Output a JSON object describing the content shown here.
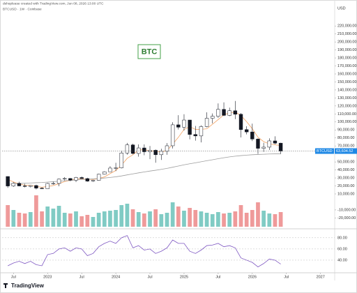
{
  "header": {
    "attribution": "dshoplease created with TradingView.com, Jun 08, 2026 13:00 UTC",
    "symbol": "BTCUSD · 1W · Coinbase"
  },
  "footer": {
    "logo": "TradingView"
  },
  "chart_data": {
    "type": "candlestick",
    "annotation": "BTC",
    "currency": "USD",
    "symbol_tag": "BTCUSD",
    "x": [
      "2022-06",
      "2022-07",
      "2022-08",
      "2022-09",
      "2022-10",
      "2022-11",
      "2022-12",
      "2023-01",
      "2023-02",
      "2023-03",
      "2023-04",
      "2023-05",
      "2023-06",
      "2023-07",
      "2023-08",
      "2023-09",
      "2023-10",
      "2023-11",
      "2023-12",
      "2024-01",
      "2024-02",
      "2024-03",
      "2024-04",
      "2024-05",
      "2024-06",
      "2024-07",
      "2024-08",
      "2024-09",
      "2024-10",
      "2024-11",
      "2024-12",
      "2025-01",
      "2025-02",
      "2025-03",
      "2025-04",
      "2025-05",
      "2025-06",
      "2025-07",
      "2025-08",
      "2025-09",
      "2025-10",
      "2025-11",
      "2025-12",
      "2026-01",
      "2026-02",
      "2026-03",
      "2026-04",
      "2026-05",
      "2026-06"
    ],
    "open": [
      31800,
      19900,
      23300,
      20000,
      19400,
      20500,
      17200,
      16500,
      23100,
      23100,
      28500,
      29300,
      27200,
      30500,
      29200,
      26000,
      27000,
      34600,
      37700,
      42300,
      42600,
      61200,
      71300,
      60600,
      67500,
      62700,
      64600,
      59000,
      63300,
      70200,
      96400,
      93400,
      102400,
      84300,
      82500,
      94200,
      104600,
      107100,
      115700,
      108200,
      114000,
      109600,
      90400,
      87500,
      78600,
      67000,
      68500,
      76300,
      73500
    ],
    "high": [
      31900,
      24600,
      25200,
      22700,
      21000,
      21500,
      18400,
      23900,
      25300,
      29200,
      31000,
      29800,
      31400,
      31800,
      30200,
      27500,
      35200,
      38400,
      44700,
      48900,
      64000,
      73800,
      72800,
      71900,
      71900,
      70000,
      65600,
      66500,
      73600,
      99600,
      108400,
      109600,
      102500,
      95000,
      95800,
      112000,
      110600,
      123200,
      124500,
      117900,
      126200,
      111200,
      94600,
      97900,
      79500,
      74000,
      79500,
      82000,
      74000
    ],
    "low": [
      17600,
      18800,
      19600,
      18200,
      18200,
      15500,
      16300,
      16500,
      21400,
      19600,
      26900,
      25800,
      24800,
      28900,
      25200,
      24900,
      26600,
      34100,
      37600,
      38500,
      41900,
      59000,
      59600,
      56600,
      58400,
      53500,
      49000,
      52500,
      58900,
      66800,
      90500,
      89200,
      78200,
      76600,
      74400,
      93300,
      98200,
      105100,
      107300,
      107200,
      103500,
      80600,
      84400,
      76000,
      60000,
      62500,
      65000,
      72000,
      60000
    ],
    "close": [
      19900,
      23300,
      20000,
      19400,
      20500,
      17200,
      16500,
      23100,
      23100,
      28500,
      29300,
      27200,
      30500,
      29200,
      26000,
      27000,
      34600,
      37700,
      42300,
      42600,
      61200,
      71300,
      60600,
      67500,
      62700,
      64600,
      59000,
      63300,
      70200,
      96400,
      93400,
      102400,
      84300,
      82500,
      94200,
      104600,
      107100,
      115700,
      108200,
      114000,
      109600,
      90400,
      87500,
      78600,
      67000,
      68500,
      76300,
      73500,
      63604.52
    ],
    "up_color": "#ffffff",
    "down_color": "#131722",
    "wick_color": "#131722",
    "moving_averages": [
      {
        "color": "#f4a261",
        "values": [
          28000,
          25000,
          22500,
          21000,
          20800,
          19500,
          18400,
          19300,
          20500,
          22800,
          25500,
          27000,
          28900,
          29100,
          28200,
          28100,
          29200,
          31300,
          35400,
          39300,
          46000,
          54500,
          59000,
          64700,
          65500,
          63900,
          63500,
          62400,
          64300,
          72200,
          80800,
          90600,
          94100,
          90700,
          90800,
          91400,
          97100,
          102900,
          108900,
          111400,
          112400,
          108000,
          100400,
          91500,
          80900,
          75400,
          72600,
          71400,
          70500
        ]
      },
      {
        "color": "#9e9e9e",
        "values": [
          22000,
          22500,
          23000,
          23400,
          23700,
          24000,
          24300,
          24800,
          25300,
          25900,
          26500,
          27000,
          27500,
          28000,
          28400,
          28800,
          29300,
          29900,
          30600,
          31400,
          32500,
          33800,
          35100,
          36300,
          37500,
          38600,
          39600,
          40700,
          41900,
          43400,
          44900,
          46400,
          47700,
          48900,
          50200,
          51500,
          52700,
          54000,
          55200,
          56300,
          57200,
          57900,
          58500,
          59000,
          59300,
          59600,
          59900,
          60100,
          60200
        ]
      }
    ],
    "last_price": {
      "value": 63604.52,
      "label": "63,604.52"
    },
    "ylim": [
      -31000,
      235000
    ],
    "yticks": [
      {
        "value": 220000,
        "label": "220,000.00"
      },
      {
        "value": 210000,
        "label": "210,000.00"
      },
      {
        "value": 200000,
        "label": "200,000.00"
      },
      {
        "value": 190000,
        "label": "190,000.00"
      },
      {
        "value": 180000,
        "label": "180,000.00"
      },
      {
        "value": 170000,
        "label": "170,000.00"
      },
      {
        "value": 160000,
        "label": "160,000.00"
      },
      {
        "value": 150000,
        "label": "150,000.00"
      },
      {
        "value": 140000,
        "label": "140,000.00"
      },
      {
        "value": 130000,
        "label": "130,000.00"
      },
      {
        "value": 120000,
        "label": "120,000.00"
      },
      {
        "value": 110000,
        "label": "110,000.00"
      },
      {
        "value": 100000,
        "label": "100,000.00"
      },
      {
        "value": 90000,
        "label": "90,000.00"
      },
      {
        "value": 80000,
        "label": "80,000.00"
      },
      {
        "value": 70000,
        "label": "70,000.00"
      },
      {
        "value": 50000,
        "label": "50,000.00"
      },
      {
        "value": 40000,
        "label": "40,000.00"
      },
      {
        "value": 30000,
        "label": "30,000.00"
      },
      {
        "value": 20000,
        "label": "20,000.00"
      },
      {
        "value": 10000,
        "label": "10,000.00"
      },
      {
        "value": -10000,
        "label": "-10,000.00"
      },
      {
        "value": -20000,
        "label": "-20,000.00"
      }
    ],
    "xlim": [
      "2022-05",
      "2027-03"
    ],
    "xticks": [
      {
        "value": "2022-07",
        "label": "Jul"
      },
      {
        "value": "2023-01",
        "label": "2023"
      },
      {
        "value": "2023-07",
        "label": "Jul"
      },
      {
        "value": "2024-01",
        "label": "2024"
      },
      {
        "value": "2024-07",
        "label": "Jul"
      },
      {
        "value": "2025-01",
        "label": "2025"
      },
      {
        "value": "2025-07",
        "label": "Jul"
      },
      {
        "value": "2026-01",
        "label": "2026"
      },
      {
        "value": "2026-07",
        "label": "Jul"
      },
      {
        "value": "2027-01",
        "label": "2027"
      }
    ],
    "volume": {
      "up_color": "#80cbc4",
      "down_color": "#ef9a9a",
      "values": [
        62,
        48,
        40,
        38,
        42,
        90,
        44,
        58,
        52,
        60,
        40,
        38,
        44,
        30,
        34,
        28,
        40,
        44,
        46,
        48,
        62,
        66,
        50,
        42,
        38,
        44,
        50,
        36,
        40,
        70,
        58,
        46,
        54,
        48,
        44,
        40,
        36,
        42,
        38,
        40,
        44,
        62,
        40,
        48,
        70,
        46,
        38,
        36,
        42
      ]
    },
    "rsi": {
      "color": "#7e57c2",
      "ylim": [
        20,
        91
      ],
      "yticks": [
        {
          "value": 80,
          "label": "80.00"
        },
        {
          "value": 60,
          "label": "60.00"
        },
        {
          "value": 40,
          "label": "40.00"
        }
      ],
      "values": [
        30,
        35,
        38,
        34,
        38,
        32,
        30,
        50,
        52,
        60,
        62,
        56,
        62,
        60,
        48,
        52,
        64,
        70,
        74,
        70,
        80,
        84,
        62,
        66,
        58,
        60,
        52,
        56,
        62,
        76,
        70,
        70,
        56,
        52,
        58,
        66,
        67,
        70,
        64,
        66,
        62,
        44,
        40,
        36,
        28,
        34,
        42,
        40,
        33
      ]
    }
  }
}
